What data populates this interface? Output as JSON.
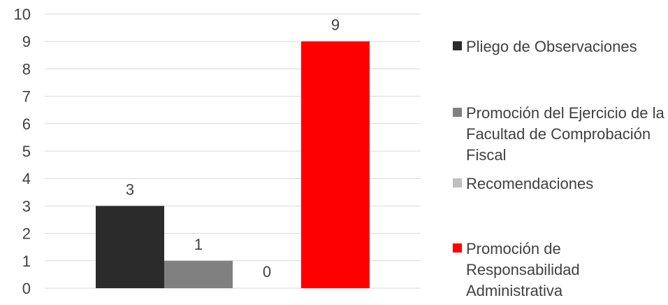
{
  "chart_data": {
    "type": "bar",
    "categories": [
      ""
    ],
    "series": [
      {
        "name": "Pliego de Observaciones",
        "values": [
          3
        ],
        "color": "#2b2b2b"
      },
      {
        "name": "Promoción del Ejercicio de la Facultad de Comprobación Fiscal",
        "values": [
          1
        ],
        "color": "#808080"
      },
      {
        "name": "Recomendaciones",
        "values": [
          0
        ],
        "color": "#bfbfbf"
      },
      {
        "name": "Promoción de Responsabilidad Administrativa",
        "values": [
          9
        ],
        "color": "#ff0000"
      }
    ],
    "ylim": [
      0,
      10
    ],
    "yticks": [
      0,
      1,
      2,
      3,
      4,
      5,
      6,
      7,
      8,
      9,
      10
    ],
    "data_labels": [
      "3",
      "1",
      "0",
      "9"
    ],
    "grid": true,
    "legend_position": "right",
    "title": "",
    "xlabel": "",
    "ylabel": ""
  }
}
